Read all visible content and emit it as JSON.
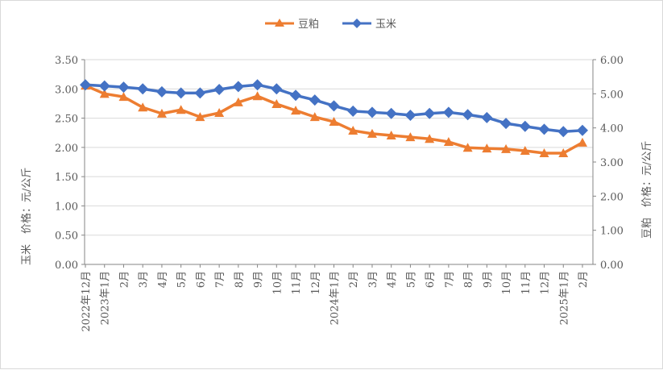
{
  "chart_data": {
    "type": "line",
    "categories": [
      "2022年12月",
      "2023年1月",
      "2月",
      "3月",
      "4月",
      "5月",
      "6月",
      "7月",
      "8月",
      "9月",
      "10月",
      "11月",
      "12月",
      "2024年1月",
      "2月",
      "3月",
      "4月",
      "5月",
      "6月",
      "7月",
      "8月",
      "9月",
      "10月",
      "11月",
      "12月",
      "2025年1月",
      "2月"
    ],
    "series": [
      {
        "name": "豆粕",
        "axis": "right",
        "color": "#ED7D31",
        "marker": "triangle",
        "values": [
          5.24,
          5.0,
          4.91,
          4.6,
          4.42,
          4.53,
          4.32,
          4.44,
          4.75,
          4.93,
          4.7,
          4.51,
          4.32,
          4.18,
          3.92,
          3.83,
          3.78,
          3.73,
          3.68,
          3.59,
          3.42,
          3.4,
          3.38,
          3.33,
          3.26,
          3.26,
          3.57
        ]
      },
      {
        "name": "玉米",
        "axis": "left",
        "color": "#4472C4",
        "marker": "diamond",
        "values": [
          3.07,
          3.05,
          3.03,
          3.0,
          2.95,
          2.93,
          2.93,
          2.99,
          3.04,
          3.07,
          3.0,
          2.89,
          2.81,
          2.71,
          2.62,
          2.6,
          2.58,
          2.55,
          2.58,
          2.6,
          2.56,
          2.51,
          2.41,
          2.36,
          2.31,
          2.27,
          2.29
        ]
      }
    ],
    "y_left": {
      "label": "玉米　价格：元/公斤",
      "lim": [
        0,
        3.5
      ],
      "ticks": [
        "0.00",
        "0.50",
        "1.00",
        "1.50",
        "2.00",
        "2.50",
        "3.00",
        "3.50"
      ]
    },
    "y_right": {
      "label": "豆粕　价格：元/公斤",
      "lim": [
        0,
        6
      ],
      "ticks": [
        "0.00",
        "1.00",
        "2.00",
        "3.00",
        "4.00",
        "5.00",
        "6.00"
      ]
    },
    "grid": true,
    "legend": "top-center"
  }
}
